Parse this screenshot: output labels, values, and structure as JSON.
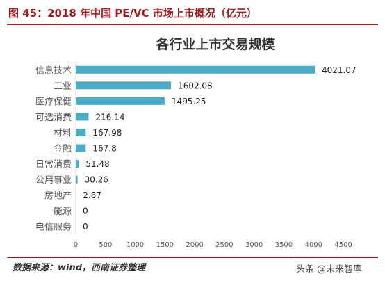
{
  "figure": {
    "title": "图 45：2018 年中国 PE/VC 市场上市概况（亿元）",
    "source": "数据来源：wind，西南证券整理",
    "watermark": "头条 @未来智库"
  },
  "colors": {
    "bar": "#4bacc6",
    "brand": "#a01d20",
    "axis": "#d9d9d9",
    "text": "#595959"
  },
  "chart_data": {
    "type": "bar",
    "orientation": "horizontal",
    "title": "各行业上市交易规模",
    "xlabel": "",
    "ylabel": "",
    "xlim": [
      0,
      4500
    ],
    "xticks": [
      0,
      500,
      1000,
      1500,
      2000,
      2500,
      3000,
      3500,
      4000,
      4500
    ],
    "grid": false,
    "categories": [
      "信息技术",
      "工业",
      "医疗保健",
      "可选消费",
      "材料",
      "金融",
      "日常消费",
      "公用事业",
      "房地产",
      "能源",
      "电信服务"
    ],
    "values": [
      4021.07,
      1602.08,
      1495.25,
      216.14,
      167.98,
      167.8,
      51.48,
      30.26,
      2.87,
      0,
      0
    ],
    "value_labels": [
      "4021.07",
      "1602.08",
      "1495.25",
      "216.14",
      "167.98",
      "167.8",
      "51.48",
      "30.26",
      "2.87",
      "0",
      "0"
    ]
  }
}
